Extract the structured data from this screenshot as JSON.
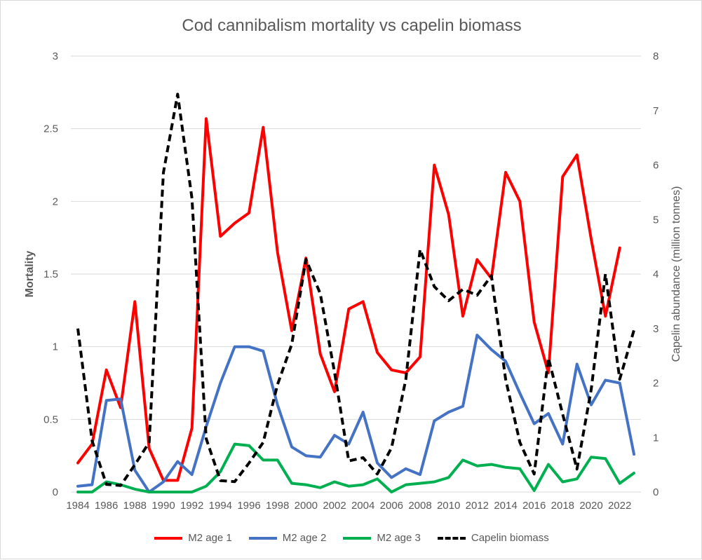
{
  "chart_data": {
    "type": "line",
    "title": "Cod cannibalism mortality vs capelin biomass",
    "ylabel": "Mortality",
    "y2label": "Capelin abundance (million tonnes)",
    "ylim": [
      0,
      3
    ],
    "y2lim": [
      0,
      8
    ],
    "yticks": [
      "0",
      "0.5",
      "1",
      "1.5",
      "2",
      "2.5",
      "3"
    ],
    "y2ticks": [
      "0",
      "1",
      "2",
      "3",
      "4",
      "5",
      "6",
      "7",
      "8"
    ],
    "xticks": [
      "1984",
      "1986",
      "1988",
      "1990",
      "1992",
      "1994",
      "1996",
      "1998",
      "2000",
      "2002",
      "2004",
      "2006",
      "2008",
      "2010",
      "2012",
      "2014",
      "2016",
      "2018",
      "2020",
      "2022"
    ],
    "grid": true,
    "legend": "bottom",
    "x": [
      1984,
      1985,
      1986,
      1987,
      1988,
      1989,
      1990,
      1991,
      1992,
      1993,
      1994,
      1995,
      1996,
      1997,
      1998,
      1999,
      2000,
      2001,
      2002,
      2003,
      2004,
      2005,
      2006,
      2007,
      2008,
      2009,
      2010,
      2011,
      2012,
      2013,
      2014,
      2015,
      2016,
      2017,
      2018,
      2019,
      2020,
      2021,
      2022,
      2023
    ],
    "series": [
      {
        "name": "M2 age 1",
        "axis": "left",
        "color": "#ff0000",
        "dash": false,
        "values": [
          0.2,
          0.33,
          0.84,
          0.58,
          1.31,
          0.3,
          0.08,
          0.08,
          0.44,
          2.57,
          1.76,
          1.85,
          1.92,
          2.51,
          1.65,
          1.11,
          1.61,
          0.95,
          0.69,
          1.26,
          1.31,
          0.96,
          0.84,
          0.82,
          0.93,
          2.25,
          1.91,
          1.21,
          1.6,
          1.47,
          2.2,
          2.0,
          1.17,
          0.82,
          2.17,
          2.32,
          1.74,
          1.21,
          1.68,
          null
        ]
      },
      {
        "name": "M2 age 2",
        "axis": "left",
        "color": "#4472c4",
        "dash": false,
        "values": [
          0.04,
          0.05,
          0.63,
          0.64,
          0.15,
          0.0,
          0.07,
          0.21,
          0.12,
          0.45,
          0.75,
          1.0,
          1.0,
          0.97,
          0.6,
          0.31,
          0.25,
          0.24,
          0.39,
          0.33,
          0.55,
          0.2,
          0.1,
          0.16,
          0.12,
          0.49,
          0.55,
          0.59,
          1.08,
          0.98,
          0.9,
          0.68,
          0.47,
          0.54,
          0.33,
          0.88,
          0.6,
          0.77,
          0.75,
          0.26
        ]
      },
      {
        "name": "M2 age 3",
        "axis": "left",
        "color": "#00b050",
        "dash": false,
        "values": [
          0.0,
          0.0,
          0.07,
          0.05,
          0.02,
          0.0,
          0.0,
          0.0,
          0.0,
          0.04,
          0.14,
          0.33,
          0.32,
          0.22,
          0.22,
          0.06,
          0.05,
          0.03,
          0.07,
          0.04,
          0.05,
          0.09,
          0.0,
          0.05,
          0.06,
          0.07,
          0.1,
          0.22,
          0.18,
          0.19,
          0.17,
          0.16,
          0.01,
          0.19,
          0.07,
          0.09,
          0.24,
          0.23,
          0.06,
          0.13
        ]
      },
      {
        "name": "Capelin biomass",
        "axis": "right",
        "color": "#000000",
        "dash": true,
        "values": [
          3.0,
          0.94,
          0.14,
          0.12,
          0.5,
          0.91,
          5.86,
          7.3,
          5.39,
          0.98,
          0.21,
          0.19,
          0.53,
          0.91,
          1.97,
          2.71,
          4.27,
          3.64,
          2.2,
          0.57,
          0.63,
          0.33,
          0.81,
          2.07,
          4.45,
          3.77,
          3.51,
          3.72,
          3.61,
          3.97,
          2.07,
          0.91,
          0.33,
          2.46,
          1.43,
          0.42,
          1.88,
          4.0,
          2.07,
          2.97
        ]
      }
    ]
  }
}
